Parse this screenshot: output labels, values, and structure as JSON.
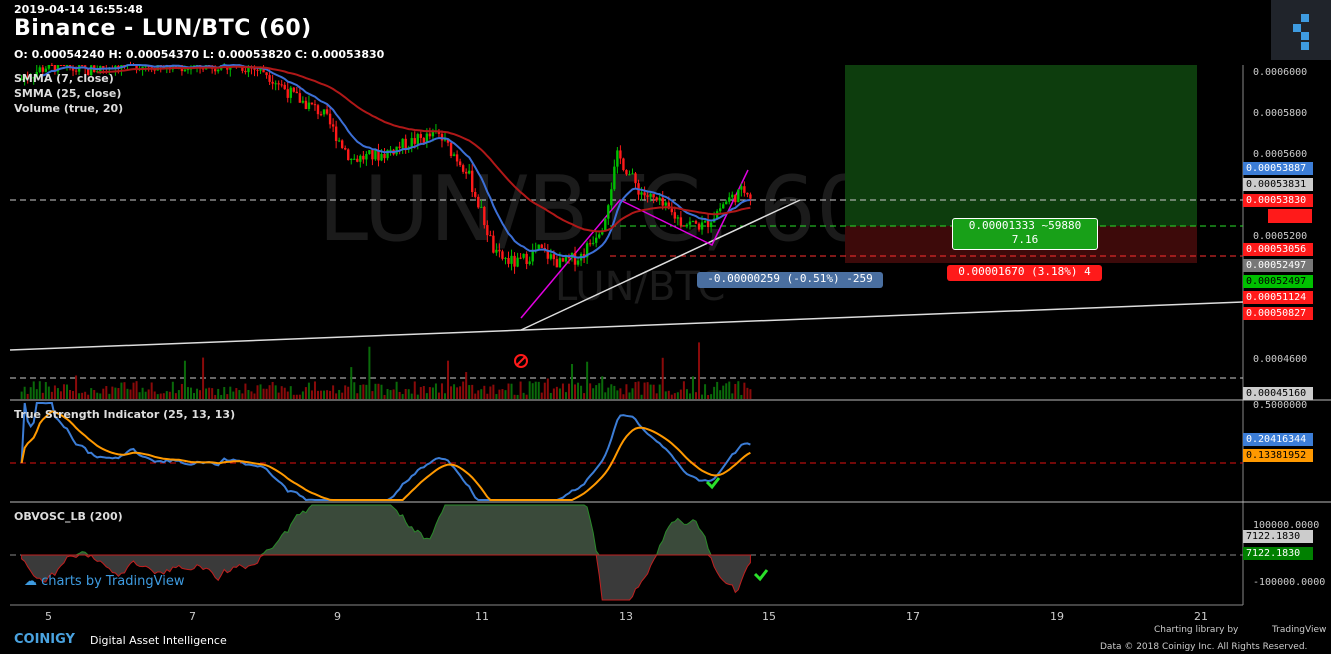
{
  "header": {
    "timestamp": "2019-04-14 16:55:48",
    "title": "Binance - LUN/BTC (60)",
    "ohlc": "O: 0.00054240 H: 0.00054370 L: 0.00053820 C: 0.00053830"
  },
  "legends": {
    "smma7": "SMMA (7, close)",
    "smma25": "SMMA (25, close)",
    "volume": "Volume (true, 20)",
    "tsi": "True Strength Indicator (25, 13, 13)",
    "obv": "OBVOSC_LB (200)"
  },
  "watermark": {
    "symbol": "LUN/BTC, 60",
    "sub": "LUN/BTC"
  },
  "price_tags": [
    {
      "text": "0.00053887",
      "bg": "#3c7dd6",
      "color": "#fff"
    },
    {
      "text": "0.00053831",
      "bg": "#cccccc",
      "color": "#000"
    },
    {
      "text": "0.00053830",
      "bg": "#ff1a1a",
      "color": "#fff"
    },
    {
      "text": "0.00053056",
      "bg": "#ff1a1a",
      "color": "#fff"
    },
    {
      "text": "0.00052497",
      "bg": "#777777",
      "color": "#fff"
    },
    {
      "text": "0.00052497",
      "bg": "#00c000",
      "color": "#000"
    },
    {
      "text": "0.00051124",
      "bg": "#ff1a1a",
      "color": "#fff"
    },
    {
      "text": "0.00050827",
      "bg": "#ff1a1a",
      "color": "#fff"
    },
    {
      "text": "0.00045160",
      "bg": "#cccccc",
      "color": "#000"
    }
  ],
  "tsi_tags": [
    {
      "text": "0.20416344",
      "bg": "#3c7dd6",
      "color": "#fff"
    },
    {
      "text": "0.13381952",
      "bg": "#ff9900",
      "color": "#000"
    }
  ],
  "obv_tags": [
    {
      "text": "7122.1830",
      "bg": "#cccccc",
      "color": "#000"
    },
    {
      "text": "7122.1830",
      "bg": "#008000",
      "color": "#fff"
    }
  ],
  "y_ticks_price": [
    "0.0006000",
    "0.0005800",
    "0.0005600",
    "0.0005200",
    "0.0004600"
  ],
  "y_ticks_tsi": [
    "0.5000000"
  ],
  "y_ticks_obv": [
    "100000.0000",
    "-100000.0000"
  ],
  "x_ticks": [
    "5",
    "7",
    "9",
    "11",
    "13",
    "15",
    "17",
    "19",
    "21"
  ],
  "boxes": {
    "target": "0.00001333 ~59880",
    "target2": "7.16",
    "stop": "0.00001670 (3.18%) 4",
    "measure": "-0.00000259 (-0.51%) -259"
  },
  "colors": {
    "up": "#00c000",
    "down": "#ff1a1a",
    "smma7": "#3c6fd6",
    "smma25": "#b01818",
    "tsi": "#3c7dd6",
    "tsi_signal": "#ff9900",
    "accent": "#3e9be0"
  },
  "footer": {
    "brand": "COINIGY",
    "tagline": "Digital Asset Intelligence",
    "library": "Charting library by",
    "tv": "TradingView",
    "copyright": "Data © 2018  Coinigy Inc. All Rights Reserved.",
    "watermark": "charts by TradingView"
  },
  "chart_data": {
    "type": "candlestick",
    "title": "Binance - LUN/BTC (60)",
    "x_tick_labels": [
      "5",
      "7",
      "9",
      "11",
      "13",
      "15",
      "17",
      "19",
      "21"
    ],
    "ylim": [
      0.000445,
      0.000605
    ],
    "close_series": {
      "x_day": [
        4.6,
        5.0,
        5.5,
        6.0,
        6.5,
        7.0,
        7.5,
        8.0,
        8.4,
        8.8,
        9.2,
        9.6,
        10.0,
        10.4,
        10.8,
        11.0,
        11.2,
        11.5,
        11.8,
        12.1,
        12.4,
        12.7,
        12.9,
        13.2,
        13.5,
        13.8,
        14.1,
        14.4,
        14.7,
        14.8
      ],
      "close": [
        0.000598,
        0.000605,
        0.000602,
        0.000606,
        0.000605,
        0.000604,
        0.000606,
        0.000602,
        0.00059,
        0.000582,
        0.00056,
        0.000562,
        0.000568,
        0.000572,
        0.000555,
        0.000535,
        0.000514,
        0.00051,
        0.000517,
        0.00051,
        0.000514,
        0.00053,
        0.000562,
        0.000545,
        0.000538,
        0.00053,
        0.000528,
        0.00054,
        0.000546,
        0.000538
      ]
    },
    "levels": {
      "last_close": 0.0005383,
      "long_target": 0.0005306,
      "stop": 0.00052497
    }
  }
}
